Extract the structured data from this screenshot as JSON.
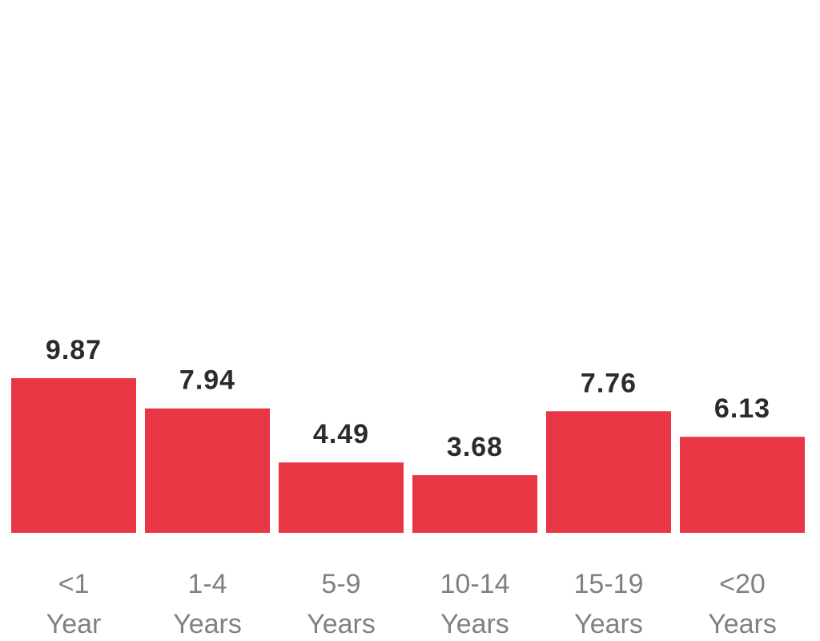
{
  "chart_data": {
    "type": "bar",
    "title": "",
    "xlabel": "",
    "ylabel": "",
    "ylim": [
      0,
      9.87
    ],
    "grid": false,
    "bar_color": "#e83645",
    "categories": [
      {
        "line1": "<1",
        "line2": "Year"
      },
      {
        "line1": "1-4",
        "line2": "Years"
      },
      {
        "line1": "5-9",
        "line2": "Years"
      },
      {
        "line1": "10-14",
        "line2": "Years"
      },
      {
        "line1": "15-19",
        "line2": "Years"
      },
      {
        "line1": "<20",
        "line2": "Years"
      }
    ],
    "values": [
      9.87,
      7.94,
      4.49,
      3.68,
      7.76,
      6.13
    ],
    "value_labels": [
      "9.87",
      "7.94",
      "4.49",
      "3.68",
      "7.76",
      "6.13"
    ]
  }
}
